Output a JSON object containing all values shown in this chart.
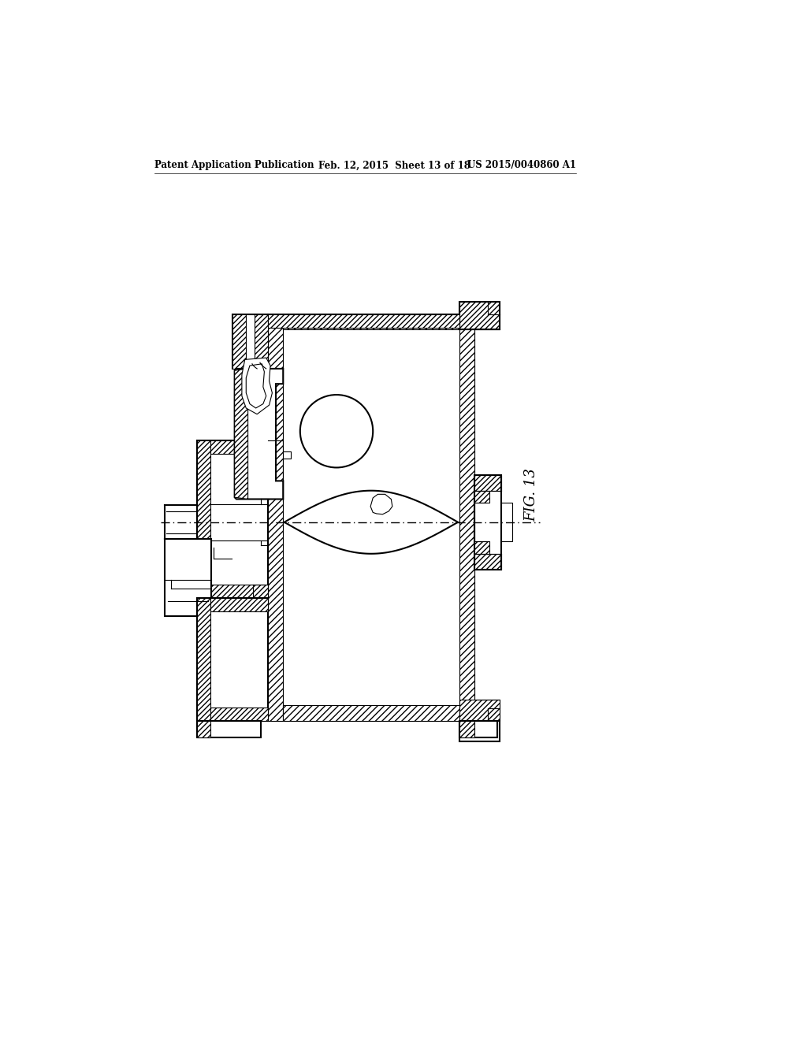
{
  "header_left": "Patent Application Publication",
  "header_mid": "Feb. 12, 2015  Sheet 13 of 18",
  "header_right": "US 2015/0040860 A1",
  "fig_label": "FIG. 13",
  "background_color": "#ffffff",
  "line_color": "#000000"
}
